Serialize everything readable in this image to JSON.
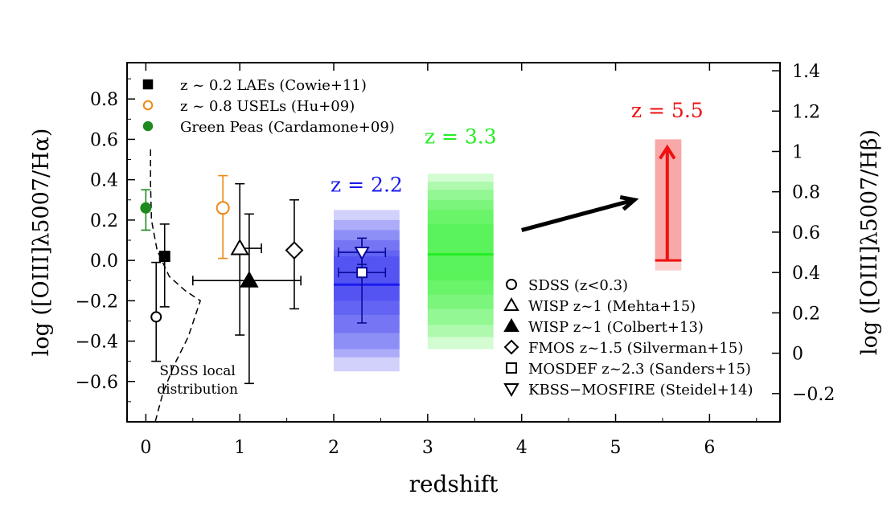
{
  "chart_data": {
    "type": "scatter",
    "xlabel": "redshift",
    "ylabel": "log ([OIII]λ5007/Hα)",
    "ylabel_right": "log ([OIII]λ5007/Hβ)",
    "xlim": [
      -0.2,
      6.75
    ],
    "ylim": [
      -0.8,
      0.98
    ],
    "ylim_right": [
      -0.34,
      1.44
    ],
    "x_ticks": [
      0,
      1,
      2,
      3,
      4,
      5,
      6
    ],
    "y_ticks": [
      -0.6,
      -0.4,
      -0.2,
      0.0,
      0.2,
      0.4,
      0.6,
      0.8
    ],
    "y_tick_labels": [
      "−0.6",
      "−0.4",
      "−0.2",
      "0.0",
      "0.2",
      "0.4",
      "0.6",
      "0.8"
    ],
    "y_right_ticks": [
      -0.2,
      0,
      0.2,
      0.4,
      0.6,
      0.8,
      1,
      1.2,
      1.4
    ],
    "y_right_tick_labels": [
      "−0.2",
      "0",
      "0.2",
      "0.4",
      "0.6",
      "0.8",
      "1",
      "1.2",
      "1.4"
    ],
    "colors": {
      "blue": "#1a1aee",
      "green": "#22ee22",
      "red": "#ee1111",
      "orange": "#ee8811",
      "darkgreen": "#1f8a1f",
      "black": "#000000"
    },
    "points": [
      {
        "name": "sdss",
        "x": 0.11,
        "y": -0.28,
        "yerr": [
          0.22,
          0.27
        ],
        "marker": "circle-open",
        "color": "#000000"
      },
      {
        "name": "lae",
        "x": 0.2,
        "y": 0.02,
        "yerr": [
          0.25,
          0.16
        ],
        "marker": "square-filled",
        "color": "#000000"
      },
      {
        "name": "green-peas",
        "x": 0.0,
        "y": 0.26,
        "yerr": [
          0.11,
          0.09
        ],
        "marker": "circle-filled",
        "color": "#1f8a1f"
      },
      {
        "name": "usel",
        "x": 0.82,
        "y": 0.26,
        "yerr": [
          0.25,
          0.16
        ],
        "marker": "circle-open",
        "color": "#ee8811"
      },
      {
        "name": "wisp-mehta",
        "x": 1.0,
        "y": 0.06,
        "xerr": [
          0.0,
          0.23
        ],
        "yerr": [
          0.43,
          0.32
        ],
        "marker": "triangle-up-open",
        "color": "#000000"
      },
      {
        "name": "wisp-colbert",
        "x": 1.1,
        "y": -0.1,
        "xerr": [
          0.6,
          0.55
        ],
        "yerr": [
          0.51,
          0.33
        ],
        "marker": "triangle-up-filled",
        "color": "#000000"
      },
      {
        "name": "fmos",
        "x": 1.58,
        "y": 0.05,
        "yerr": [
          0.29,
          0.25
        ],
        "marker": "diamond-open",
        "color": "#000000"
      },
      {
        "name": "mosdef",
        "x": 2.3,
        "y": -0.06,
        "xerr": [
          0.25,
          0.25
        ],
        "yerr": [
          0.25,
          0.17
        ],
        "marker": "square-open",
        "color": "#0a0a99"
      },
      {
        "name": "kbss",
        "x": 2.3,
        "y": 0.04,
        "xerr": [
          0.25,
          0.25
        ],
        "yerr": [
          0.06,
          0.07
        ],
        "marker": "triangle-down-open",
        "color": "#0a0a99"
      }
    ],
    "sdss_local_distribution": {
      "x": [
        0.05,
        0.05,
        0.06,
        0.12,
        0.25,
        0.42,
        0.58,
        0.45,
        0.3,
        0.18,
        0.1
      ],
      "y": [
        0.55,
        0.38,
        0.2,
        0.05,
        -0.08,
        -0.15,
        -0.2,
        -0.38,
        -0.52,
        -0.66,
        -0.8
      ]
    },
    "bands": [
      {
        "name": "z2.2",
        "x_range": [
          2.0,
          2.7
        ],
        "color": "#1a1aee",
        "median": -0.12,
        "levels": [
          [
            -0.55,
            0.25
          ],
          [
            -0.48,
            0.2
          ],
          [
            -0.44,
            0.15
          ],
          [
            -0.36,
            0.1
          ],
          [
            -0.27,
            0.05
          ],
          [
            -0.2,
            0.02
          ]
        ]
      },
      {
        "name": "z3.3",
        "x_range": [
          3.0,
          3.7
        ],
        "color": "#22ee22",
        "median": 0.03,
        "levels": [
          [
            -0.44,
            0.43
          ],
          [
            -0.38,
            0.39
          ],
          [
            -0.32,
            0.35
          ],
          [
            -0.24,
            0.3
          ],
          [
            -0.17,
            0.25
          ],
          [
            -0.1,
            0.18
          ]
        ]
      },
      {
        "name": "z5.5",
        "x_range": [
          5.42,
          5.7
        ],
        "color": "#ee1111",
        "median": 0.0,
        "levels": [
          [
            -0.05,
            0.6
          ],
          [
            0.0,
            0.6
          ]
        ]
      }
    ],
    "lower_limit_arrow": {
      "x": 5.55,
      "y_from": 0.0,
      "y_to": 0.56
    },
    "trend_arrow": {
      "x_from": 4.0,
      "y_from": 0.15,
      "x_to": 5.2,
      "y_to": 0.3
    },
    "band_labels": [
      {
        "text": "z = 2.2",
        "x": 2.35,
        "y": 0.34,
        "color": "#1a1aee"
      },
      {
        "text": "z = 3.3",
        "x": 3.35,
        "y": 0.58,
        "color": "#22ee22"
      },
      {
        "text": "z = 5.5",
        "x": 5.55,
        "y": 0.71,
        "color": "#ee1111"
      }
    ],
    "annotation": {
      "line1": "SDSS local",
      "line2": "distribution"
    },
    "legend_top": [
      {
        "label": "z ~ 0.2 LAEs (Cowie+11)",
        "marker": "square-filled",
        "color": "#000000"
      },
      {
        "label": "z ~ 0.8 USELs (Hu+09)",
        "marker": "circle-open",
        "color": "#ee8811"
      },
      {
        "label": "Green Peas (Cardamone+09)",
        "marker": "circle-filled",
        "color": "#1f8a1f"
      }
    ],
    "legend_bottom": [
      {
        "label": "SDSS (z<0.3)",
        "marker": "circle-open"
      },
      {
        "label": "WISP z~1 (Mehta+15)",
        "marker": "triangle-up-open"
      },
      {
        "label": "WISP z~1 (Colbert+13)",
        "marker": "triangle-up-filled"
      },
      {
        "label": "FMOS z~1.5 (Silverman+15)",
        "marker": "diamond-open"
      },
      {
        "label": "MOSDEF z~2.3 (Sanders+15)",
        "marker": "square-open"
      },
      {
        "label": "KBSS−MOSFIRE (Steidel+14)",
        "marker": "triangle-down-open"
      }
    ]
  }
}
